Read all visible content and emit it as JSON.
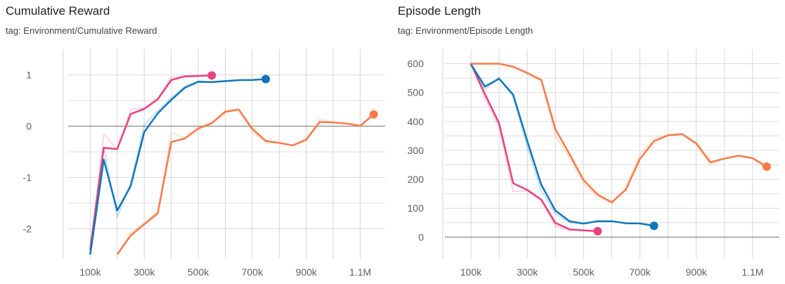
{
  "chart_data": [
    {
      "type": "line",
      "title": "Cumulative Reward",
      "subtitle": "tag: Environment/Cumulative Reward",
      "xlabel": "",
      "ylabel": "",
      "xlim": [
        0,
        1200000
      ],
      "ylim": [
        -2.5,
        1.5
      ],
      "x_ticks": [
        100000,
        300000,
        500000,
        700000,
        900000,
        1100000
      ],
      "x_tick_labels": [
        "100k",
        "300k",
        "500k",
        "700k",
        "900k",
        "1.1M"
      ],
      "x_grid": [
        0,
        100000,
        200000,
        300000,
        400000,
        500000,
        600000,
        700000,
        800000,
        900000,
        1000000,
        1100000
      ],
      "y_ticks": [
        1,
        0,
        -1,
        -2
      ],
      "y_tick_labels": [
        "1",
        "0",
        "-1",
        "-2"
      ],
      "y_grid": [
        1,
        0.5,
        0,
        -0.5,
        -1,
        -1.5,
        -2
      ],
      "grid": true,
      "series": [
        {
          "color": "#e8427f",
          "x": [
            100000,
            150000,
            200000,
            250000,
            300000,
            350000,
            400000,
            450000,
            500000,
            550000
          ],
          "y": [
            -2.4,
            -0.15,
            -0.45,
            0.33,
            0.35,
            0.55,
            0.95,
            0.98,
            0.98,
            0.99
          ]
        },
        {
          "color": "#0f77b9",
          "x": [
            100000,
            150000,
            200000,
            250000,
            300000,
            350000,
            400000,
            450000,
            500000,
            550000,
            600000,
            650000,
            700000,
            750000
          ],
          "y": [
            -2.5,
            -0.4,
            -1.78,
            -1.1,
            0.03,
            0.3,
            0.55,
            0.78,
            0.88,
            0.86,
            0.88,
            0.9,
            0.9,
            0.92
          ]
        },
        {
          "color": "#f77b4a",
          "x": [
            200000,
            250000,
            300000,
            350000,
            400000,
            450000,
            500000,
            550000,
            600000,
            650000,
            700000,
            750000,
            800000,
            850000,
            900000,
            950000,
            1000000,
            1050000,
            1100000,
            1150000
          ],
          "y": [
            -2.5,
            -2.08,
            -1.88,
            -1.67,
            -0.12,
            -0.23,
            -0.02,
            0.07,
            0.31,
            0.33,
            -0.1,
            -0.32,
            -0.33,
            -0.38,
            -0.25,
            0.13,
            0.07,
            0.05,
            0.0,
            0.26
          ]
        }
      ]
    },
    {
      "type": "line",
      "title": "Episode Length",
      "subtitle": "tag: Environment/Episode Length",
      "xlabel": "",
      "ylabel": "",
      "xlim": [
        0,
        1200000
      ],
      "ylim": [
        -60,
        650
      ],
      "x_ticks": [
        100000,
        300000,
        500000,
        700000,
        900000,
        1100000
      ],
      "x_tick_labels": [
        "100k",
        "300k",
        "500k",
        "700k",
        "900k",
        "1.1M"
      ],
      "x_grid": [
        0,
        100000,
        200000,
        300000,
        400000,
        500000,
        600000,
        700000,
        800000,
        900000,
        1000000,
        1100000
      ],
      "y_ticks": [
        600,
        500,
        400,
        300,
        200,
        100,
        0
      ],
      "y_tick_labels": [
        "600",
        "500",
        "400",
        "300",
        "200",
        "100",
        "0"
      ],
      "y_grid": [
        600,
        550,
        500,
        450,
        400,
        350,
        300,
        250,
        200,
        150,
        100,
        50,
        0
      ],
      "grid": true,
      "series": [
        {
          "color": "#e8427f",
          "x": [
            100000,
            150000,
            200000,
            250000,
            300000,
            350000,
            400000,
            450000,
            500000,
            550000
          ],
          "y": [
            600,
            480,
            380,
            158,
            160,
            125,
            38,
            24,
            23,
            20
          ]
        },
        {
          "color": "#0f77b9",
          "x": [
            100000,
            150000,
            200000,
            250000,
            300000,
            350000,
            400000,
            450000,
            500000,
            550000,
            600000,
            650000,
            700000,
            750000
          ],
          "y": [
            598,
            510,
            552,
            485,
            310,
            160,
            80,
            50,
            46,
            56,
            55,
            47,
            47,
            38
          ]
        },
        {
          "color": "#f77b4a",
          "x": [
            100000,
            150000,
            200000,
            250000,
            300000,
            350000,
            400000,
            450000,
            500000,
            550000,
            600000,
            650000,
            700000,
            750000,
            800000,
            850000,
            900000,
            950000,
            1000000,
            1050000,
            1100000,
            1150000
          ],
          "y": [
            600,
            600,
            600,
            588,
            565,
            540,
            350,
            275,
            185,
            140,
            117,
            170,
            285,
            340,
            355,
            357,
            320,
            250,
            273,
            283,
            272,
            240
          ]
        }
      ]
    }
  ]
}
